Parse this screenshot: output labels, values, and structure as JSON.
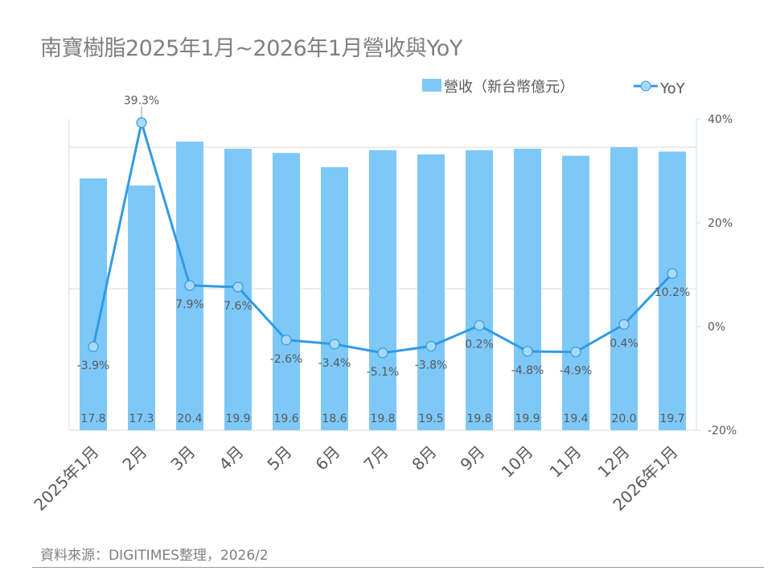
{
  "title": "南寶樹脂2025年1月~2026年1月營收與YoY",
  "source": "資料來源：DIGITIMES整理，2026/2",
  "colors": {
    "bar": "#7EC8F8",
    "line": "#2F9BE6",
    "marker": "#A9D9F6",
    "grid": "#d9d9d9",
    "text": "#595959"
  },
  "chart_data": {
    "type": "bar+line",
    "categories": [
      "2025年1月",
      "2月",
      "3月",
      "4月",
      "5月",
      "6月",
      "7月",
      "8月",
      "9月",
      "10月",
      "11月",
      "12月",
      "2026年1月"
    ],
    "series": [
      {
        "name": "營收（新台幣億元）",
        "type": "bar",
        "axis": "left",
        "values": [
          17.8,
          17.3,
          20.4,
          19.9,
          19.6,
          18.6,
          19.8,
          19.5,
          19.8,
          19.9,
          19.4,
          20.0,
          19.7
        ],
        "labels": [
          "17.8",
          "17.3",
          "20.4",
          "19.9",
          "19.6",
          "18.6",
          "19.8",
          "19.5",
          "19.8",
          "19.9",
          "19.4",
          "20.0",
          "19.7"
        ]
      },
      {
        "name": "YoY",
        "type": "line",
        "axis": "right",
        "values": [
          -3.9,
          39.3,
          7.9,
          7.6,
          -2.6,
          -3.4,
          -5.1,
          -3.8,
          0.2,
          -4.8,
          -4.9,
          0.4,
          10.2
        ],
        "labels": [
          "-3.9%",
          "39.3%",
          "7.9%",
          "7.6%",
          "-2.6%",
          "-3.4%",
          "-5.1%",
          "-3.8%",
          "0.2%",
          "-4.8%",
          "-4.9%",
          "0.4%",
          "10.2%"
        ]
      }
    ],
    "left_axis": {
      "ylim": [
        0,
        22
      ],
      "gridlines": [
        10,
        20
      ],
      "tick_labels_shown": false
    },
    "right_axis": {
      "ylim": [
        -20,
        40
      ],
      "ticks": [
        40,
        20,
        0,
        -20
      ],
      "tick_labels": [
        "40%",
        "20%",
        "0%",
        "-20%"
      ]
    },
    "legend": {
      "placement": "top-right",
      "entries": [
        "營收（新台幣億元）",
        "YoY"
      ]
    },
    "grid": true
  }
}
